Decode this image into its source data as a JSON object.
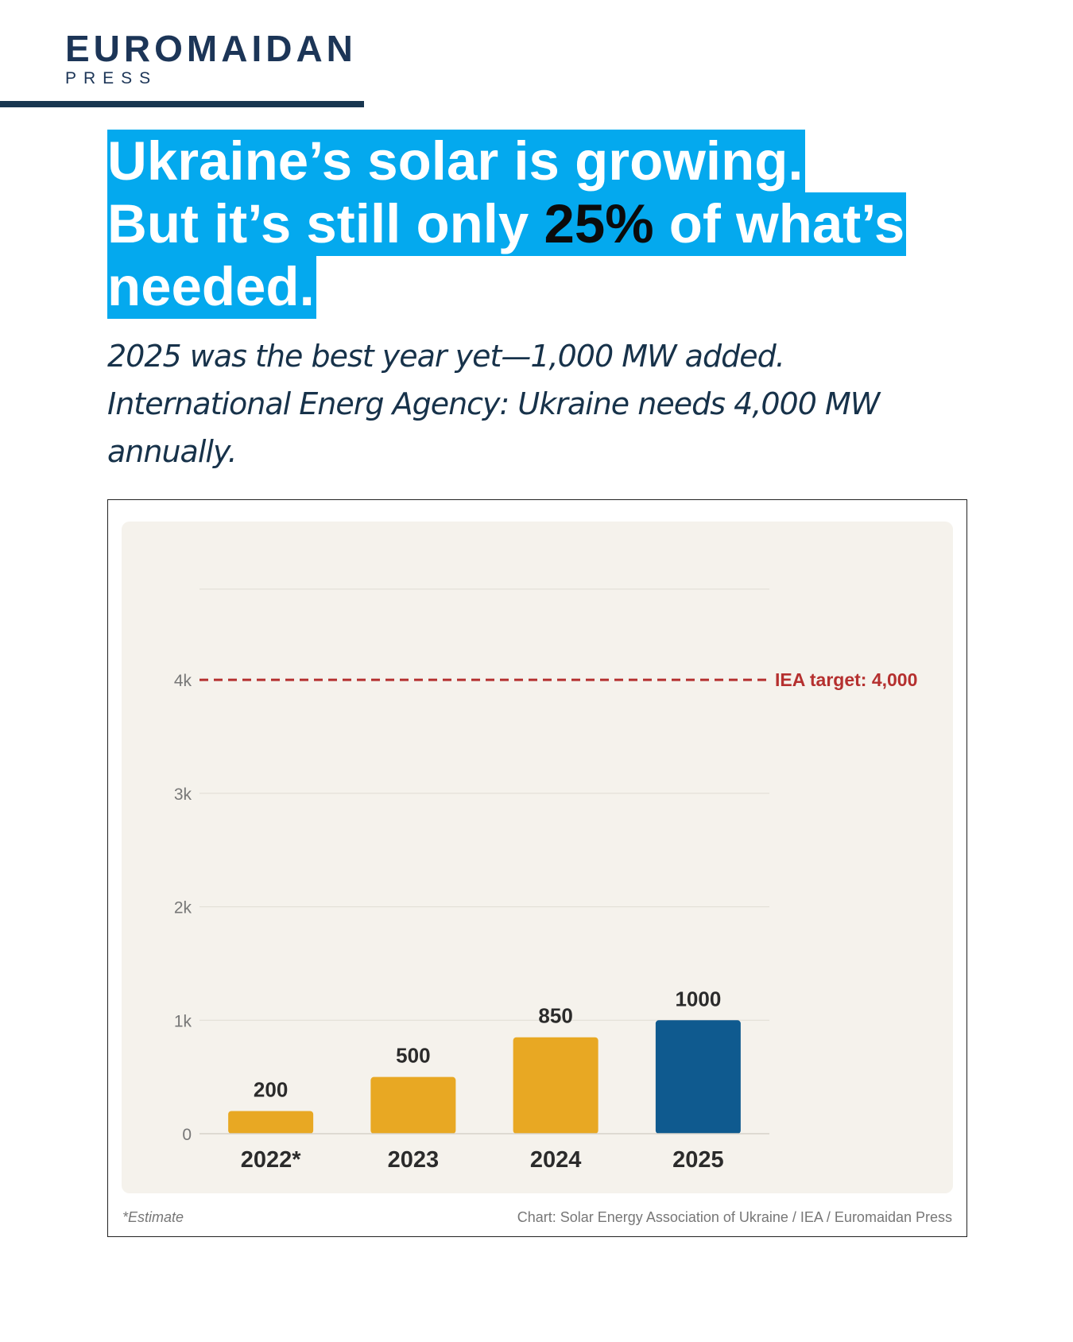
{
  "brand": {
    "name": "EUROMAIDAN",
    "sub": "PRESS"
  },
  "headline": {
    "line1": "Ukraine’s solar is growing.",
    "line2_pre": "But it’s still only ",
    "line2_accent": "25%",
    "line2_post": " of what’s",
    "line3": "needed."
  },
  "subtitle": {
    "line1": "2025 was the best year yet—1,000 MW added.",
    "line2": "International Energ Agency: Ukraine needs 4,000 MW",
    "line3": "annually."
  },
  "colors": {
    "highlight": "#04a9ee",
    "bar": "#e8a823",
    "bar_highlight": "#0f5a8f",
    "target": "#b5302f",
    "navy": "#1c3557"
  },
  "chart_data": {
    "type": "bar",
    "categories": [
      "2022*",
      "2023",
      "2024",
      "2025"
    ],
    "values": [
      200,
      500,
      850,
      1000
    ],
    "highlight_index": 3,
    "ylim": [
      0,
      4800
    ],
    "yticks": [
      0,
      1000,
      2000,
      3000,
      4000
    ],
    "ytick_labels": [
      "0",
      "1k",
      "2k",
      "3k",
      "4k"
    ],
    "reference_line": {
      "value": 4000,
      "label": "IEA target: 4,000"
    },
    "grid": true,
    "footnote": "*Estimate",
    "source": "Chart: Solar Energy Association of Ukraine / IEA / Euromaidan Press"
  }
}
